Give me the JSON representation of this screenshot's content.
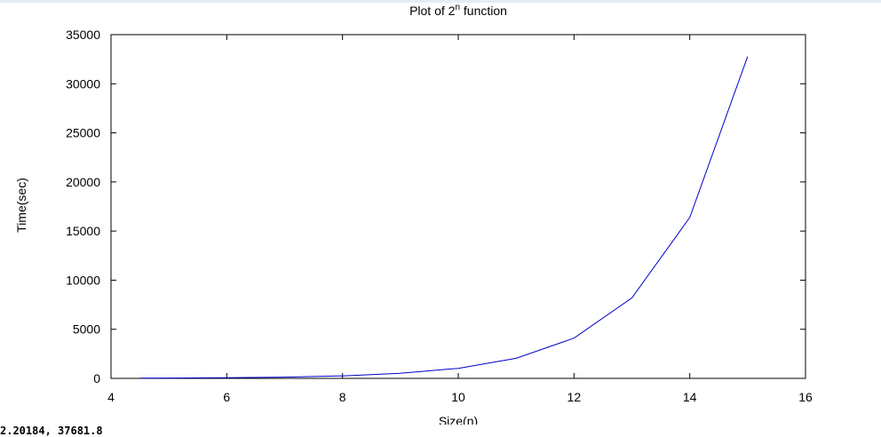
{
  "chart_data": {
    "type": "line",
    "title": "Plot of 2",
    "title_superscript": "n",
    "title_suffix": " function",
    "xlabel": "Size(n)",
    "ylabel": "Time(sec)",
    "xlim": [
      4,
      16
    ],
    "ylim": [
      0,
      35000
    ],
    "x_ticks": [
      "4",
      "6",
      "8",
      "10",
      "12",
      "14",
      "16"
    ],
    "y_ticks": [
      "0",
      "5000",
      "10000",
      "15000",
      "20000",
      "25000",
      "30000",
      "35000"
    ],
    "grid": false,
    "line_color": "#0000cc",
    "series": [
      {
        "x": [
          4.5,
          5,
          6,
          7,
          8,
          9,
          10,
          11,
          12,
          13,
          14,
          15
        ],
        "values": [
          20,
          32,
          64,
          128,
          256,
          512,
          1024,
          2048,
          4096,
          8192,
          16384,
          32768
        ]
      }
    ]
  },
  "status": {
    "coordinates": "2.20184,  37681.8"
  }
}
